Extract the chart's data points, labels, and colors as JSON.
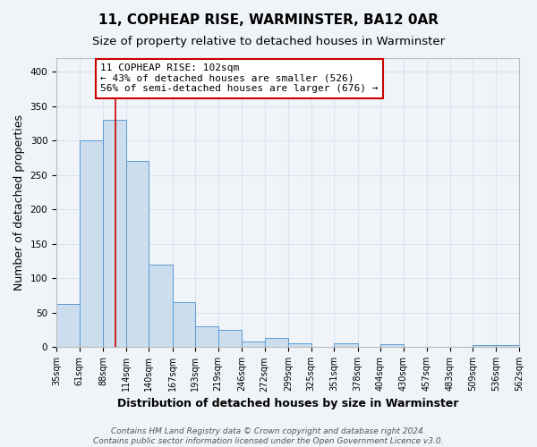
{
  "title": "11, COPHEAP RISE, WARMINSTER, BA12 0AR",
  "subtitle": "Size of property relative to detached houses in Warminster",
  "xlabel": "Distribution of detached houses by size in Warminster",
  "ylabel": "Number of detached properties",
  "footer_line1": "Contains HM Land Registry data © Crown copyright and database right 2024.",
  "footer_line2": "Contains public sector information licensed under the Open Government Licence v3.0.",
  "bar_edges": [
    35,
    61,
    88,
    114,
    140,
    167,
    193,
    219,
    246,
    272,
    299,
    325,
    351,
    378,
    404,
    430,
    457,
    483,
    509,
    536,
    562
  ],
  "bar_heights": [
    63,
    300,
    330,
    270,
    120,
    65,
    30,
    25,
    8,
    13,
    5,
    0,
    5,
    0,
    4,
    0,
    0,
    0,
    3,
    3
  ],
  "bar_color": "#ccdded",
  "bar_edge_color": "#5b9bd5",
  "red_line_x": 102,
  "red_line_color": "#cc0000",
  "annotation_line1": "11 COPHEAP RISE: 102sqm",
  "annotation_line2": "← 43% of detached houses are smaller (526)",
  "annotation_line3": "56% of semi-detached houses are larger (676) →",
  "annotation_box_color": "#ffffff",
  "annotation_box_edge": "#cc0000",
  "ylim": [
    0,
    420
  ],
  "xlim": [
    35,
    562
  ],
  "tick_labels": [
    "35sqm",
    "61sqm",
    "88sqm",
    "114sqm",
    "140sqm",
    "167sqm",
    "193sqm",
    "219sqm",
    "246sqm",
    "272sqm",
    "299sqm",
    "325sqm",
    "351sqm",
    "378sqm",
    "404sqm",
    "430sqm",
    "457sqm",
    "483sqm",
    "509sqm",
    "536sqm",
    "562sqm"
  ],
  "background_color": "#f0f4f8",
  "grid_color": "#d8e4f0",
  "title_fontsize": 11,
  "subtitle_fontsize": 9.5,
  "axis_label_fontsize": 9,
  "tick_fontsize": 7,
  "annotation_fontsize": 8,
  "footer_fontsize": 6.5
}
